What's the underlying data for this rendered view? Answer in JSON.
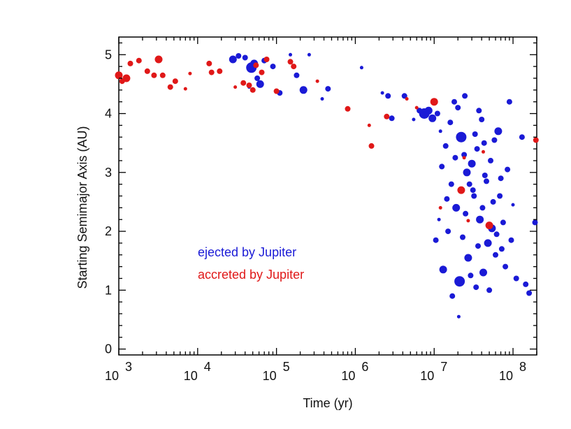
{
  "chart_data": {
    "type": "scatter",
    "x_scale": "log",
    "xlim": [
      1000,
      200000000
    ],
    "ylim": [
      -0.1,
      5.3
    ],
    "xlabel": "Time (yr)",
    "ylabel": "Starting Semimajor Axis (AU)",
    "x_tick_labels": [
      {
        "value": 1000,
        "base": "10",
        "exp": "3"
      },
      {
        "value": 10000,
        "base": "10",
        "exp": "4"
      },
      {
        "value": 100000,
        "base": "10",
        "exp": "5"
      },
      {
        "value": 1000000,
        "base": "10",
        "exp": "6"
      },
      {
        "value": 10000000,
        "base": "10",
        "exp": "7"
      },
      {
        "value": 100000000,
        "base": "10",
        "exp": "8"
      }
    ],
    "y_ticks": [
      0,
      1,
      2,
      3,
      4,
      5
    ],
    "y_tick_labels": [
      "0",
      "1",
      "2",
      "3",
      "4",
      "5"
    ],
    "legend": [
      {
        "label": "ejected by Jupiter",
        "color": "#1a1ad6"
      },
      {
        "label": "accreted by Jupiter",
        "color": "#e01818"
      }
    ],
    "series": [
      {
        "name": "ejected by Jupiter",
        "color": "#1a1ad6",
        "points": [
          {
            "x": 28000,
            "y": 4.92,
            "s": 2
          },
          {
            "x": 33000,
            "y": 4.98,
            "s": 1
          },
          {
            "x": 40000,
            "y": 4.95,
            "s": 1
          },
          {
            "x": 48000,
            "y": 4.78,
            "s": 3
          },
          {
            "x": 52000,
            "y": 4.85,
            "s": 2
          },
          {
            "x": 57000,
            "y": 4.6,
            "s": 1
          },
          {
            "x": 62000,
            "y": 4.5,
            "s": 2
          },
          {
            "x": 45000,
            "y": 4.45,
            "s": 0
          },
          {
            "x": 70000,
            "y": 4.9,
            "s": 1
          },
          {
            "x": 90000,
            "y": 4.8,
            "s": 1
          },
          {
            "x": 110000,
            "y": 4.35,
            "s": 1
          },
          {
            "x": 150000,
            "y": 5.0,
            "s": 0
          },
          {
            "x": 180000,
            "y": 4.65,
            "s": 1
          },
          {
            "x": 220000,
            "y": 4.4,
            "s": 2
          },
          {
            "x": 260000,
            "y": 5.0,
            "s": 0
          },
          {
            "x": 380000,
            "y": 4.25,
            "s": 0
          },
          {
            "x": 450000,
            "y": 4.42,
            "s": 1
          },
          {
            "x": 1200000,
            "y": 4.78,
            "s": 0
          },
          {
            "x": 2200000,
            "y": 4.35,
            "s": 0
          },
          {
            "x": 2600000,
            "y": 4.3,
            "s": 1
          },
          {
            "x": 2900000,
            "y": 3.92,
            "s": 1
          },
          {
            "x": 4200000,
            "y": 4.3,
            "s": 1
          },
          {
            "x": 5500000,
            "y": 3.9,
            "s": 0
          },
          {
            "x": 6500000,
            "y": 4.05,
            "s": 1
          },
          {
            "x": 7500000,
            "y": 4.0,
            "s": 3
          },
          {
            "x": 8500000,
            "y": 4.05,
            "s": 2
          },
          {
            "x": 9500000,
            "y": 3.92,
            "s": 2
          },
          {
            "x": 11000000,
            "y": 4.0,
            "s": 1
          },
          {
            "x": 12000000,
            "y": 3.7,
            "s": 0
          },
          {
            "x": 14000000,
            "y": 3.45,
            "s": 1
          },
          {
            "x": 16000000,
            "y": 3.85,
            "s": 1
          },
          {
            "x": 18000000,
            "y": 4.2,
            "s": 1
          },
          {
            "x": 20000000,
            "y": 4.1,
            "s": 1
          },
          {
            "x": 22000000,
            "y": 3.6,
            "s": 3
          },
          {
            "x": 24000000,
            "y": 3.3,
            "s": 1
          },
          {
            "x": 26000000,
            "y": 3.0,
            "s": 2
          },
          {
            "x": 28000000,
            "y": 2.8,
            "s": 1
          },
          {
            "x": 30000000,
            "y": 3.15,
            "s": 2
          },
          {
            "x": 32000000,
            "y": 2.6,
            "s": 1
          },
          {
            "x": 35000000,
            "y": 3.4,
            "s": 1
          },
          {
            "x": 38000000,
            "y": 2.2,
            "s": 2
          },
          {
            "x": 40000000,
            "y": 3.9,
            "s": 1
          },
          {
            "x": 44000000,
            "y": 2.95,
            "s": 1
          },
          {
            "x": 48000000,
            "y": 1.8,
            "s": 2
          },
          {
            "x": 52000000,
            "y": 3.2,
            "s": 1
          },
          {
            "x": 56000000,
            "y": 2.5,
            "s": 1
          },
          {
            "x": 60000000,
            "y": 1.6,
            "s": 1
          },
          {
            "x": 65000000,
            "y": 3.7,
            "s": 2
          },
          {
            "x": 70000000,
            "y": 2.9,
            "s": 1
          },
          {
            "x": 75000000,
            "y": 2.15,
            "s": 1
          },
          {
            "x": 80000000,
            "y": 1.4,
            "s": 1
          },
          {
            "x": 90000000,
            "y": 4.2,
            "s": 1
          },
          {
            "x": 100000000,
            "y": 2.45,
            "s": 0
          },
          {
            "x": 110000000,
            "y": 1.2,
            "s": 1
          },
          {
            "x": 130000000,
            "y": 3.6,
            "s": 1
          },
          {
            "x": 145000000,
            "y": 1.1,
            "s": 1
          },
          {
            "x": 160000000,
            "y": 0.95,
            "s": 1
          },
          {
            "x": 190000000,
            "y": 2.15,
            "s": 1
          },
          {
            "x": 13000000,
            "y": 1.35,
            "s": 2
          },
          {
            "x": 15000000,
            "y": 2.0,
            "s": 1
          },
          {
            "x": 17000000,
            "y": 0.9,
            "s": 1
          },
          {
            "x": 19000000,
            "y": 2.4,
            "s": 2
          },
          {
            "x": 21000000,
            "y": 1.15,
            "s": 3
          },
          {
            "x": 23000000,
            "y": 1.9,
            "s": 1
          },
          {
            "x": 25000000,
            "y": 2.3,
            "s": 1
          },
          {
            "x": 27000000,
            "y": 1.55,
            "s": 2
          },
          {
            "x": 29000000,
            "y": 1.25,
            "s": 1
          },
          {
            "x": 31000000,
            "y": 2.7,
            "s": 1
          },
          {
            "x": 34000000,
            "y": 1.05,
            "s": 1
          },
          {
            "x": 36000000,
            "y": 1.75,
            "s": 1
          },
          {
            "x": 42000000,
            "y": 1.3,
            "s": 2
          },
          {
            "x": 46000000,
            "y": 2.85,
            "s": 1
          },
          {
            "x": 50000000,
            "y": 1.0,
            "s": 1
          },
          {
            "x": 54000000,
            "y": 2.05,
            "s": 2
          },
          {
            "x": 58000000,
            "y": 3.55,
            "s": 1
          },
          {
            "x": 12500000,
            "y": 3.1,
            "s": 1
          },
          {
            "x": 14500000,
            "y": 2.55,
            "s": 1
          },
          {
            "x": 16500000,
            "y": 2.8,
            "s": 1
          },
          {
            "x": 18500000,
            "y": 3.25,
            "s": 1
          },
          {
            "x": 11500000,
            "y": 2.2,
            "s": 0
          },
          {
            "x": 10500000,
            "y": 1.85,
            "s": 1
          },
          {
            "x": 33000000,
            "y": 3.65,
            "s": 1
          },
          {
            "x": 37000000,
            "y": 4.05,
            "s": 1
          },
          {
            "x": 41000000,
            "y": 2.4,
            "s": 1
          },
          {
            "x": 62000000,
            "y": 1.95,
            "s": 1
          },
          {
            "x": 68000000,
            "y": 2.6,
            "s": 1
          },
          {
            "x": 72000000,
            "y": 1.7,
            "s": 1
          },
          {
            "x": 85000000,
            "y": 3.05,
            "s": 1
          },
          {
            "x": 95000000,
            "y": 1.85,
            "s": 1
          },
          {
            "x": 20500000,
            "y": 0.55,
            "s": 0
          },
          {
            "x": 24500000,
            "y": 4.3,
            "s": 1
          },
          {
            "x": 43000000,
            "y": 3.5,
            "s": 1
          }
        ]
      },
      {
        "name": "accreted by Jupiter",
        "color": "#e01818",
        "points": [
          {
            "x": 1000,
            "y": 4.65,
            "s": 2
          },
          {
            "x": 1100,
            "y": 4.55,
            "s": 1
          },
          {
            "x": 1250,
            "y": 4.6,
            "s": 2
          },
          {
            "x": 1400,
            "y": 4.85,
            "s": 1
          },
          {
            "x": 1800,
            "y": 4.9,
            "s": 1
          },
          {
            "x": 2300,
            "y": 4.72,
            "s": 1
          },
          {
            "x": 2800,
            "y": 4.65,
            "s": 1
          },
          {
            "x": 3200,
            "y": 4.92,
            "s": 2
          },
          {
            "x": 3600,
            "y": 4.65,
            "s": 1
          },
          {
            "x": 4500,
            "y": 4.45,
            "s": 1
          },
          {
            "x": 5200,
            "y": 4.55,
            "s": 1
          },
          {
            "x": 7000,
            "y": 4.42,
            "s": 0
          },
          {
            "x": 8000,
            "y": 4.68,
            "s": 0
          },
          {
            "x": 14000,
            "y": 4.85,
            "s": 1
          },
          {
            "x": 15000,
            "y": 4.7,
            "s": 1
          },
          {
            "x": 19000,
            "y": 4.72,
            "s": 1
          },
          {
            "x": 30000,
            "y": 4.45,
            "s": 0
          },
          {
            "x": 38000,
            "y": 4.52,
            "s": 1
          },
          {
            "x": 45000,
            "y": 4.48,
            "s": 1
          },
          {
            "x": 50000,
            "y": 4.4,
            "s": 1
          },
          {
            "x": 55000,
            "y": 4.82,
            "s": 1
          },
          {
            "x": 65000,
            "y": 4.7,
            "s": 1
          },
          {
            "x": 75000,
            "y": 4.92,
            "s": 1
          },
          {
            "x": 100000,
            "y": 4.38,
            "s": 1
          },
          {
            "x": 150000,
            "y": 4.88,
            "s": 1
          },
          {
            "x": 165000,
            "y": 4.8,
            "s": 1
          },
          {
            "x": 330000,
            "y": 4.55,
            "s": 0
          },
          {
            "x": 800000,
            "y": 4.08,
            "s": 1
          },
          {
            "x": 1500000,
            "y": 3.8,
            "s": 0
          },
          {
            "x": 1600000,
            "y": 3.45,
            "s": 1
          },
          {
            "x": 2500000,
            "y": 3.95,
            "s": 1
          },
          {
            "x": 4500000,
            "y": 4.25,
            "s": 0
          },
          {
            "x": 6000000,
            "y": 4.1,
            "s": 0
          },
          {
            "x": 10000000,
            "y": 4.2,
            "s": 2
          },
          {
            "x": 12000000,
            "y": 2.4,
            "s": 0
          },
          {
            "x": 22000000,
            "y": 2.7,
            "s": 2
          },
          {
            "x": 24000000,
            "y": 3.25,
            "s": 0
          },
          {
            "x": 27000000,
            "y": 2.18,
            "s": 0
          },
          {
            "x": 42000000,
            "y": 3.35,
            "s": 0
          },
          {
            "x": 50000000,
            "y": 2.1,
            "s": 2
          },
          {
            "x": 195000000,
            "y": 3.55,
            "s": 1
          }
        ]
      }
    ]
  }
}
